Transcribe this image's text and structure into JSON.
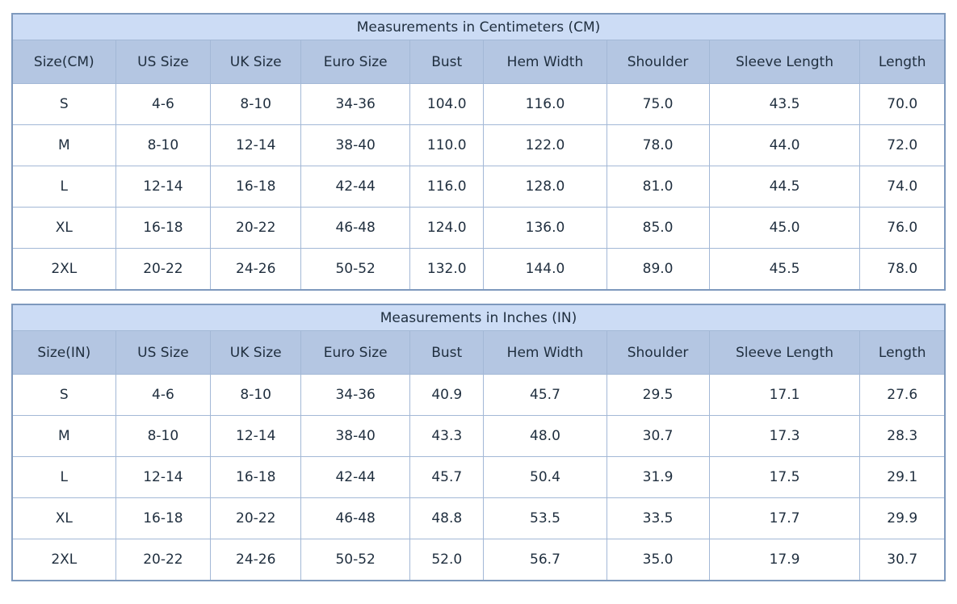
{
  "colors": {
    "title_row_bg": "#ccdcf5",
    "header_row_bg": "#b4c6e2",
    "border": "#a3b8d6",
    "outer_border": "#7e99bd",
    "text": "#1f2e3e",
    "row_bg": "#ffffff"
  },
  "tables": [
    {
      "title": "Measurements in Centimeters (CM)",
      "headers": [
        "Size(CM)",
        "US Size",
        "UK Size",
        "Euro Size",
        "Bust",
        "Hem Width",
        "Shoulder",
        "Sleeve Length",
        "Length"
      ],
      "rows": [
        [
          "S",
          "4-6",
          "8-10",
          "34-36",
          "104.0",
          "116.0",
          "75.0",
          "43.5",
          "70.0"
        ],
        [
          "M",
          "8-10",
          "12-14",
          "38-40",
          "110.0",
          "122.0",
          "78.0",
          "44.0",
          "72.0"
        ],
        [
          "L",
          "12-14",
          "16-18",
          "42-44",
          "116.0",
          "128.0",
          "81.0",
          "44.5",
          "74.0"
        ],
        [
          "XL",
          "16-18",
          "20-22",
          "46-48",
          "124.0",
          "136.0",
          "85.0",
          "45.0",
          "76.0"
        ],
        [
          "2XL",
          "20-22",
          "24-26",
          "50-52",
          "132.0",
          "144.0",
          "89.0",
          "45.5",
          "78.0"
        ]
      ]
    },
    {
      "title": "Measurements in Inches (IN)",
      "headers": [
        "Size(IN)",
        "US Size",
        "UK Size",
        "Euro Size",
        "Bust",
        "Hem Width",
        "Shoulder",
        "Sleeve Length",
        "Length"
      ],
      "rows": [
        [
          "S",
          "4-6",
          "8-10",
          "34-36",
          "40.9",
          "45.7",
          "29.5",
          "17.1",
          "27.6"
        ],
        [
          "M",
          "8-10",
          "12-14",
          "38-40",
          "43.3",
          "48.0",
          "30.7",
          "17.3",
          "28.3"
        ],
        [
          "L",
          "12-14",
          "16-18",
          "42-44",
          "45.7",
          "50.4",
          "31.9",
          "17.5",
          "29.1"
        ],
        [
          "XL",
          "16-18",
          "20-22",
          "46-48",
          "48.8",
          "53.5",
          "33.5",
          "17.7",
          "29.9"
        ],
        [
          "2XL",
          "20-22",
          "24-26",
          "50-52",
          "52.0",
          "56.7",
          "35.0",
          "17.9",
          "30.7"
        ]
      ]
    }
  ]
}
